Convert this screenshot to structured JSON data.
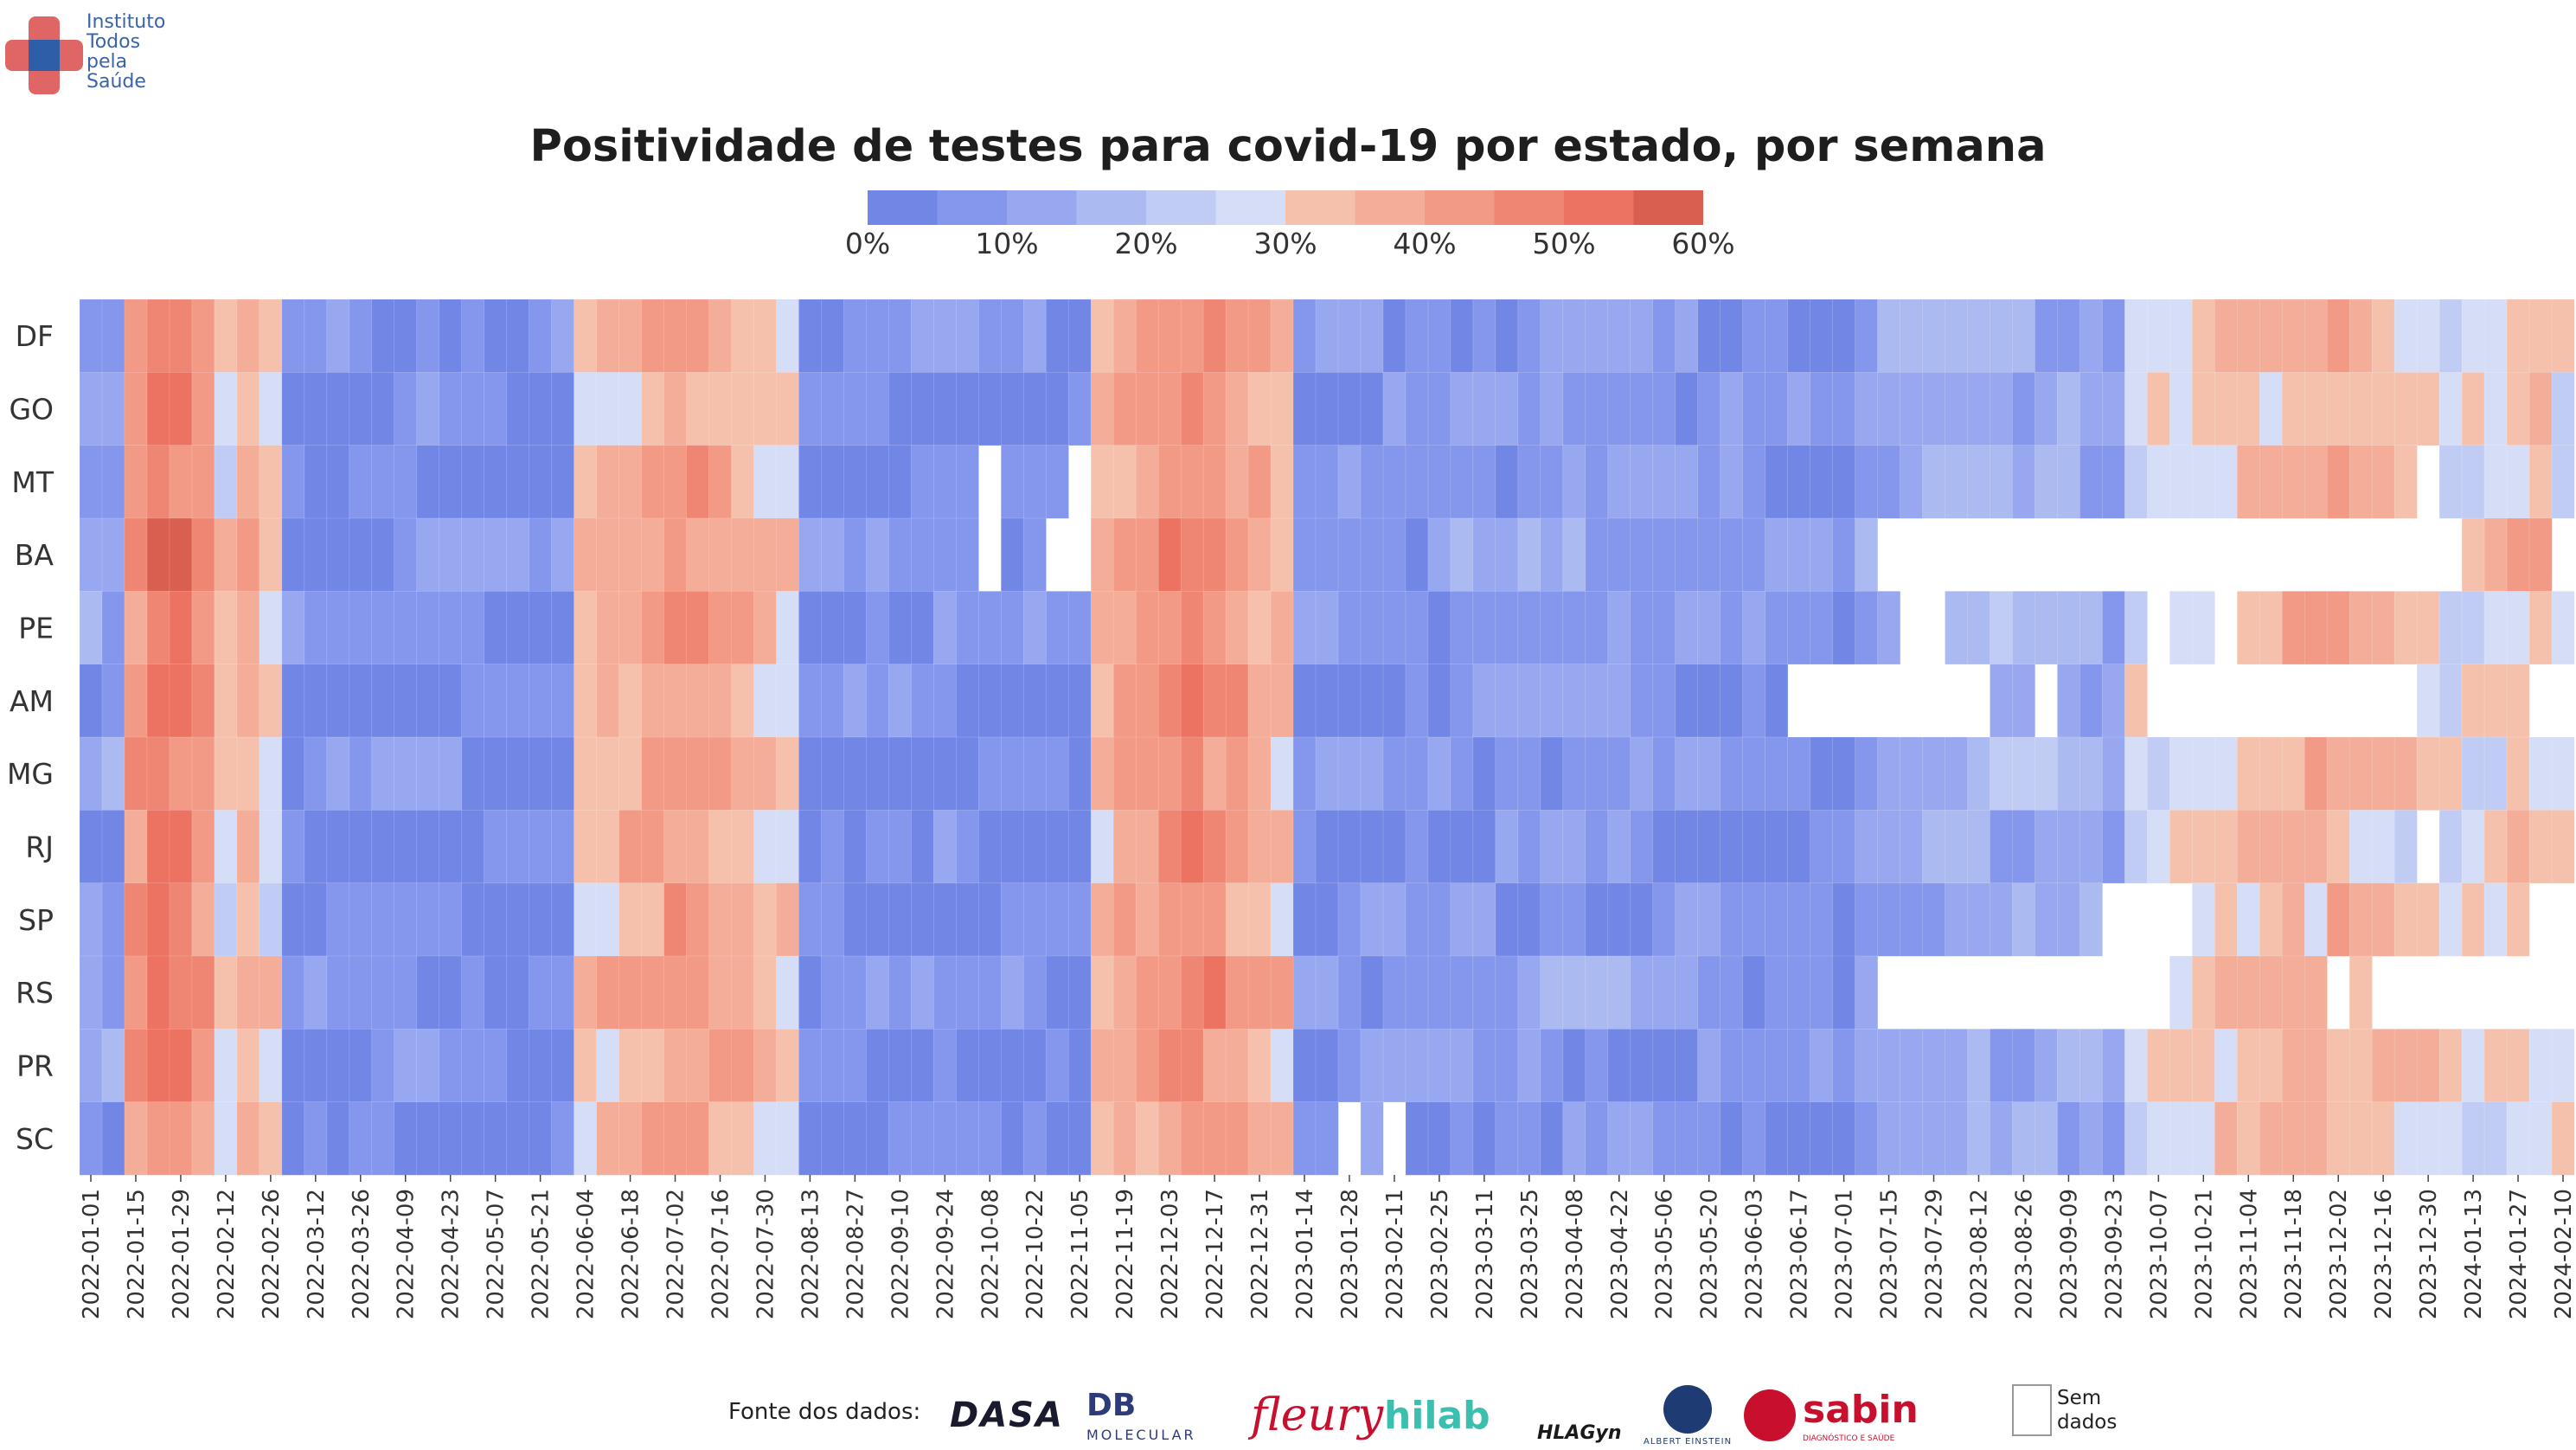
{
  "org": {
    "name_lines": [
      "Instituto",
      "Todos",
      "pela",
      "Saúde"
    ],
    "colors": {
      "red": "#e06666",
      "blue": "#2f5ea8"
    }
  },
  "chart_data": {
    "type": "heatmap",
    "title": "Positividade de testes para covid-19 por estado, por semana",
    "colorbar": {
      "min": 0,
      "max": 60,
      "step": 5,
      "ticks": [
        0,
        10,
        20,
        30,
        40,
        50,
        60
      ],
      "tick_labels": [
        "0%",
        "10%",
        "20%",
        "30%",
        "40%",
        "50%",
        "60%"
      ],
      "colors": [
        "#7286e6",
        "#8597ed",
        "#98a8f0",
        "#acbaf2",
        "#c1ccf5",
        "#d5ddf7",
        "#f5c1ad",
        "#f4ad98",
        "#f29a86",
        "#ef8673",
        "#ec7361",
        "#d96050"
      ]
    },
    "rows": [
      "DF",
      "GO",
      "MT",
      "BA",
      "PE",
      "AM",
      "MG",
      "RJ",
      "SP",
      "RS",
      "PR",
      "SC"
    ],
    "x_start": "2022-01-01",
    "x_count": 111,
    "x_ticks": [
      "2022-01-01",
      "2022-01-15",
      "2022-01-29",
      "2022-02-12",
      "2022-02-26",
      "2022-03-12",
      "2022-03-26",
      "2022-04-09",
      "2022-04-23",
      "2022-05-07",
      "2022-05-21",
      "2022-06-04",
      "2022-06-18",
      "2022-07-02",
      "2022-07-16",
      "2022-07-30",
      "2022-08-13",
      "2022-08-27",
      "2022-09-10",
      "2022-09-24",
      "2022-10-08",
      "2022-10-22",
      "2022-11-05",
      "2022-11-19",
      "2022-12-03",
      "2022-12-17",
      "2022-12-31",
      "2023-01-14",
      "2023-01-28",
      "2023-02-11",
      "2023-02-25",
      "2023-03-11",
      "2023-03-25",
      "2023-04-08",
      "2023-04-22",
      "2023-05-06",
      "2023-05-20",
      "2023-06-03",
      "2023-06-17",
      "2023-07-01",
      "2023-07-15",
      "2023-07-29",
      "2023-08-12",
      "2023-08-26",
      "2023-09-09",
      "2023-09-23",
      "2023-10-07",
      "2023-10-21",
      "2023-11-04",
      "2023-11-18",
      "2023-12-02",
      "2023-12-16",
      "2023-12-30",
      "2024-01-13",
      "2024-01-27",
      "2024-02-10"
    ],
    "missing": {
      "MT": [
        [
          40,
          40
        ],
        [
          44,
          44
        ],
        [
          104,
          104
        ]
      ],
      "BA": [
        [
          40,
          40
        ],
        [
          43,
          44
        ],
        [
          80,
          105
        ],
        [
          110,
          110
        ]
      ],
      "PE": [
        [
          81,
          82
        ],
        [
          92,
          92
        ],
        [
          95,
          95
        ]
      ],
      "AM": [
        [
          76,
          84
        ],
        [
          87,
          87
        ],
        [
          92,
          103
        ],
        [
          109,
          110
        ]
      ],
      "RJ": [
        [
          104,
          104
        ]
      ],
      "SP": [
        [
          90,
          93
        ],
        [
          109,
          110
        ]
      ],
      "RS": [
        [
          80,
          92
        ],
        [
          100,
          100
        ],
        [
          102,
          110
        ]
      ],
      "SC": [
        [
          56,
          56
        ],
        [
          58,
          58
        ]
      ]
    },
    "waves": [
      {
        "start": 0,
        "end": 1,
        "peak": 12,
        "decay": 2
      },
      {
        "start": 2,
        "end": 5,
        "peak": 50,
        "decay": 4
      },
      {
        "start": 6,
        "end": 8,
        "peak": 34,
        "decay": 3
      },
      {
        "start": 9,
        "end": 21,
        "peak": 7,
        "decay": 4
      },
      {
        "start": 22,
        "end": 31,
        "peak": 40,
        "decay": 3
      },
      {
        "start": 32,
        "end": 44,
        "peak": 7,
        "decay": 4
      },
      {
        "start": 45,
        "end": 53,
        "peak": 44,
        "decay": 3
      },
      {
        "start": 54,
        "end": 78,
        "peak": 10,
        "decay": 6
      },
      {
        "start": 79,
        "end": 90,
        "peak": 16,
        "decay": 4
      },
      {
        "start": 91,
        "end": 106,
        "peak": 36,
        "decay": 4
      },
      {
        "start": 107,
        "end": 110,
        "peak": 34,
        "decay": 2
      }
    ],
    "row_offsets": [
      2,
      0,
      1,
      4,
      2,
      1,
      2,
      0,
      0,
      3,
      1,
      0
    ],
    "xlabel": "",
    "ylabel": ""
  },
  "footer": {
    "source_label": "Fonte dos dados:",
    "sources": [
      {
        "name": "dasa",
        "text": "DASA",
        "color": "#1a1a2e"
      },
      {
        "name": "db-molecular",
        "text": "DB",
        "sub": "MOLECULAR",
        "color": "#2d3b7a"
      },
      {
        "name": "fleury",
        "text": "fleury",
        "color": "#c8102e"
      },
      {
        "name": "hilab",
        "text": "hilab",
        "color": "#3cbfae"
      },
      {
        "name": "hlagyn",
        "text": "HLAGyn",
        "color": "#1a1a1a"
      },
      {
        "name": "albert-einstein",
        "text": "ALBERT EINSTEIN",
        "color": "#1f3b73"
      },
      {
        "name": "sabin",
        "text": "sabin",
        "sub": "DIAGNÓSTICO E SAÚDE",
        "color": "#c8102e"
      }
    ],
    "missing_legend": [
      "Sem",
      "dados"
    ]
  }
}
